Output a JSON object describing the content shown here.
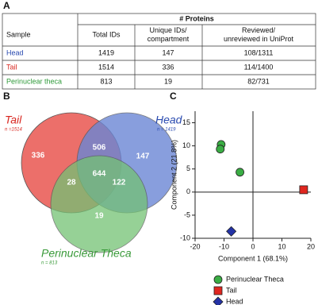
{
  "panels": [
    "A",
    "B",
    "C"
  ],
  "table": {
    "group_header": "# Proteins",
    "columns": [
      "Sample",
      "Total IDs",
      "Unique IDs/ compartment",
      "Reviewed/ unreviewed in UniProt"
    ],
    "rows": [
      [
        "Head",
        1419,
        147,
        "108/1311"
      ],
      [
        "Tail",
        1514,
        336,
        "114/1400"
      ],
      [
        "Perinuclear theca",
        813,
        19,
        "82/731"
      ]
    ]
  },
  "venn": {
    "sets": [
      {
        "name": "Tail",
        "note": "n =1514",
        "color": "#e8504a"
      },
      {
        "name": "Head",
        "note": "n = 1419",
        "color": "#4a6ccc"
      },
      {
        "name": "Perinuclear Theca",
        "note": "n = 813",
        "color": "#55b455"
      }
    ],
    "regions": [
      336,
      506,
      147,
      644,
      28,
      122,
      19
    ]
  },
  "chart_data": {
    "type": "scatter",
    "xlabel": "Component 1 (68.1%)",
    "ylabel": "Component 2 (21.8%)",
    "xlim": [
      -20,
      20
    ],
    "xticks": [
      -20,
      -10,
      0,
      10,
      20
    ],
    "ylim": [
      -10,
      17.5
    ],
    "yticks": [
      -10,
      -5,
      0,
      5,
      10,
      15
    ],
    "series": [
      {
        "name": "Perinuclear Theca",
        "color": "#3aad44",
        "marker": "circle",
        "x": [
          -11,
          -11.3,
          -4.5
        ],
        "y": [
          10.3,
          9.3,
          4.3
        ]
      },
      {
        "name": "Tail",
        "color": "#e0261f",
        "marker": "square",
        "x": [
          17.5
        ],
        "y": [
          0.5
        ]
      },
      {
        "name": "Head",
        "color": "#2433a6",
        "marker": "diamond",
        "x": [
          -7.5
        ],
        "y": [
          -8.5
        ]
      }
    ]
  }
}
